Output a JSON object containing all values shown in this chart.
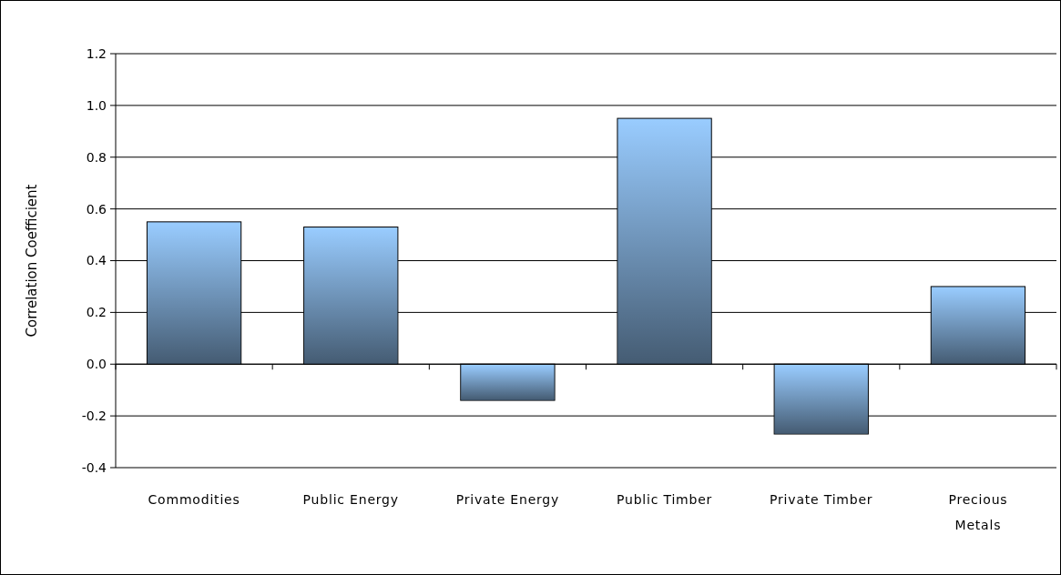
{
  "chart_data": {
    "type": "bar",
    "ylabel": "Correlation Coefficient",
    "categories": [
      "Commodities",
      "Public Energy",
      "Private Energy",
      "Public Timber",
      "Private Timber",
      "Precious Metals"
    ],
    "values": [
      0.55,
      0.53,
      -0.14,
      0.95,
      -0.27,
      0.3
    ],
    "color": "#99ccff",
    "ylim": [
      -0.4,
      1.2
    ],
    "yticks": [
      {
        "value": -0.4,
        "label": "-0.4"
      },
      {
        "value": -0.2,
        "label": "-0.2"
      },
      {
        "value": 0,
        "label": "0.0"
      },
      {
        "value": 0.2,
        "label": "0.2"
      },
      {
        "value": 0.4,
        "label": "0.4"
      },
      {
        "value": 0.6,
        "label": "0.6"
      },
      {
        "value": 0.8,
        "label": "0.8"
      },
      {
        "value": 1.0,
        "label": "1.0"
      },
      {
        "value": 1.2,
        "label": "1.2"
      }
    ],
    "grid": "y"
  }
}
